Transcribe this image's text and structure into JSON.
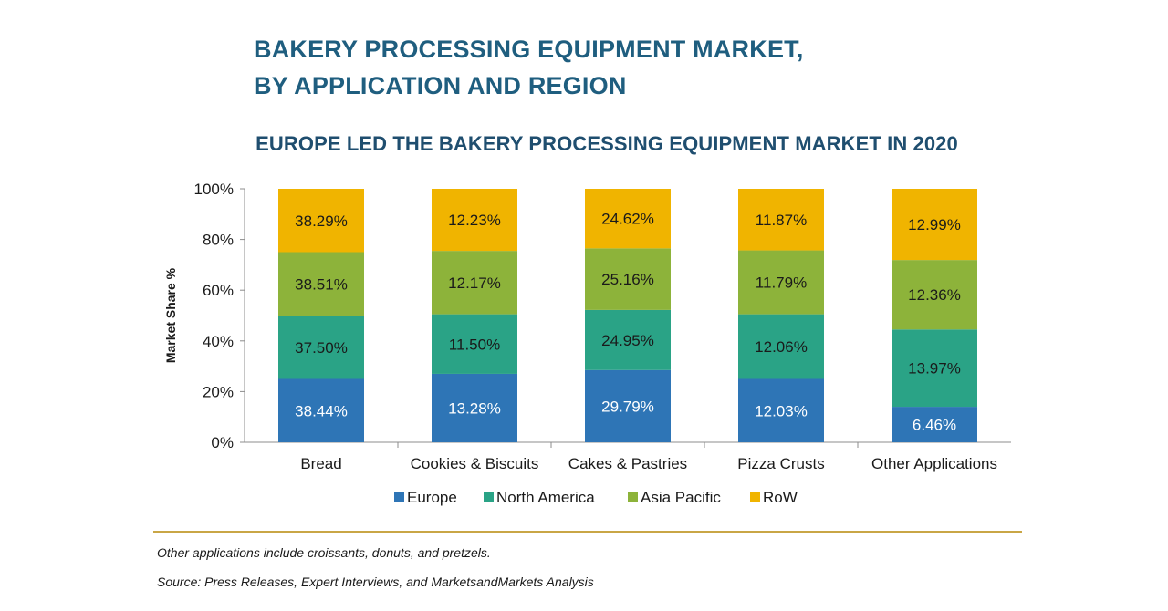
{
  "title_lines": [
    "BAKERY PROCESSING EQUIPMENT MARKET,",
    "BY APPLICATION AND REGION"
  ],
  "footnotes": {
    "note": "Other applications include croissants, donuts, and pretzels.",
    "source": "Source: Press Releases, Expert Interviews, and MarketsandMarkets Analysis"
  },
  "chart_data": {
    "type": "bar",
    "stacked": true,
    "title": "EUROPE LED THE BAKERY PROCESSING EQUIPMENT MARKET IN 2020",
    "xlabel": "",
    "ylabel": "Market Share %",
    "ylim": [
      0,
      100
    ],
    "yticks": [
      "0%",
      "20%",
      "40%",
      "60%",
      "80%",
      "100%"
    ],
    "categories": [
      "Bread",
      "Cookies & Biscuits",
      "Cakes & Pastries",
      "Pizza Crusts",
      "Other Applications"
    ],
    "series": [
      {
        "name": "Europe",
        "color": "#2e75b6",
        "labels": [
          "38.44%",
          "13.28%",
          "29.79%",
          "12.03%",
          "6.46%"
        ],
        "values": [
          25,
          27,
          28.5,
          25,
          14
        ]
      },
      {
        "name": "North America",
        "color": "#2aa386",
        "labels": [
          "37.50%",
          "11.50%",
          "24.95%",
          "12.06%",
          "13.97%"
        ],
        "values": [
          24.8,
          23.5,
          23.7,
          25.5,
          30.5
        ]
      },
      {
        "name": "Asia Pacific",
        "color": "#8db33a",
        "labels": [
          "38.51%",
          "12.17%",
          "25.16%",
          "11.79%",
          "12.36%"
        ],
        "values": [
          25.2,
          25,
          24.3,
          25.2,
          27.4
        ]
      },
      {
        "name": "RoW",
        "color": "#f0b400",
        "labels": [
          "38.29%",
          "12.23%",
          "24.62%",
          "11.87%",
          "12.99%"
        ],
        "values": [
          25,
          24.5,
          23.5,
          24.3,
          28.1
        ]
      }
    ],
    "legend_position": "bottom"
  }
}
